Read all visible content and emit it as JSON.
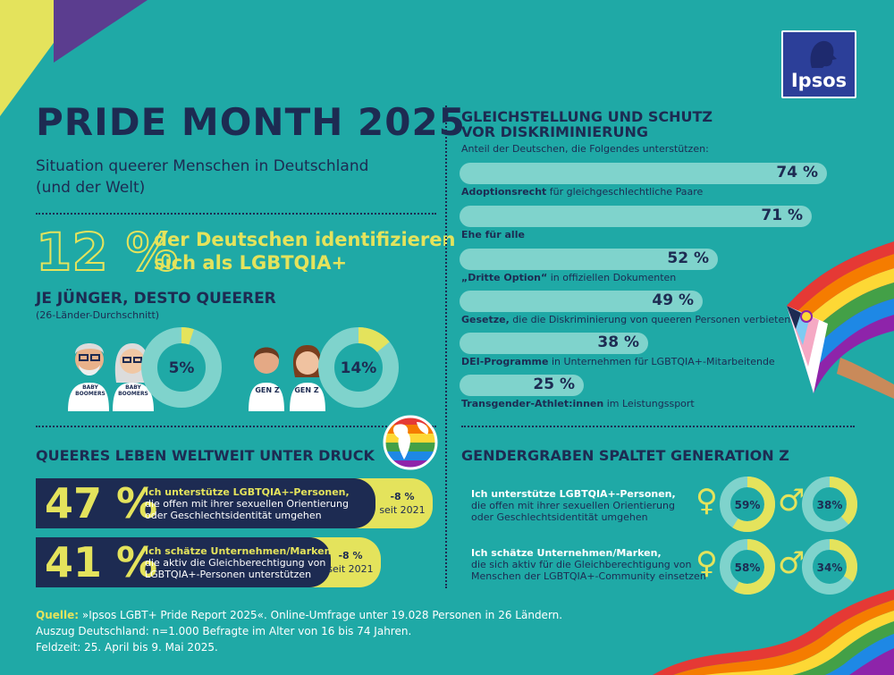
{
  "header": {
    "title": "PRIDE MONTH 2025",
    "subtitle_line1": "Situation queerer Menschen in Deutschland",
    "subtitle_line2": "(und der Welt)",
    "logo_text": "Ipsos"
  },
  "lgbt_share": {
    "value": "12 %",
    "text_line1": "der Deutschen identifizieren",
    "text_line2": "sich als LGBTQIA+"
  },
  "generations": {
    "title": "JE JÜNGER, DESTO QUEERER",
    "note": "(26-Länder-Durchschnitt)",
    "boomer_tag": "BABY BOOMERS",
    "genz_tag": "GEN Z"
  },
  "world": {
    "title": "QUEERES LEBEN WELTWEIT UNTER DRUCK",
    "stats": [
      {
        "value": "47 %",
        "bold": "Ich unterstütze LGBTQIA+-Personen,",
        "line2": "die offen mit ihrer sexuellen Orientierung",
        "line3": "oder Geschlechtsidentität umgehen",
        "change": "-8 %",
        "since": "seit 2021"
      },
      {
        "value": "41 %",
        "bold": "Ich schätze Unternehmen/Marken,",
        "line2": "die aktiv die Gleichberechtigung von",
        "line3": "LGBTQIA+-Personen unterstützen",
        "change": "-8 %",
        "since": "seit 2021"
      }
    ]
  },
  "equality": {
    "title_line1": "GLEICHSTELLUNG UND SCHUTZ",
    "title_line2": "VOR DISKRIMINIERUNG",
    "intro": "Anteil der Deutschen, die Folgendes unterstützen:",
    "items": [
      {
        "value_label": "74 %",
        "bold": "Adoptionsrecht",
        "rest": " für gleichgeschlechtliche Paare"
      },
      {
        "value_label": "71 %",
        "bold": "Ehe für alle",
        "rest": ""
      },
      {
        "value_label": "52 %",
        "bold": "„Dritte Option“",
        "rest": " in offiziellen Dokumenten"
      },
      {
        "value_label": "49 %",
        "bold": "Gesetze,",
        "rest": " die die Diskriminierung von queeren Personen verbieten"
      },
      {
        "value_label": "38 %",
        "bold": "DEI-Programme",
        "rest": " in Unternehmen für LGBTQIA+-Mitarbeitende"
      },
      {
        "value_label": "25 %",
        "bold": "Transgender-Athlet:innen",
        "rest": " im Leistungssport"
      }
    ]
  },
  "gender": {
    "title": "GENDERGRABEN SPALTET GENERATION Z",
    "female_symbol": "♀",
    "male_symbol": "♂",
    "rows": [
      {
        "bold": "Ich unterstütze LGBTQIA+-Personen,",
        "line2": "die offen mit ihrer sexuellen Orientierung",
        "line3": "oder Geschlechtsidentität umgehen"
      },
      {
        "bold": "Ich schätze Unternehmen/Marken,",
        "line2": "die sich aktiv für die Gleichberechtigung von",
        "line3": "Menschen der LGBTQIA+-Community einsetzen"
      }
    ]
  },
  "footer": {
    "source_label": "Quelle:",
    "line1": " »Ipsos LGBT+ Pride Report 2025«. Online-Umfrage unter 19.028 Personen in 26 Ländern.",
    "line2": "Auszug Deutschland: n=1.000 Befragte im Alter von 16 bis 74 Jahren.",
    "line3": "Feldzeit: 25. April bis 9. Mai 2025."
  },
  "colors": {
    "background": "#1fa9a6",
    "navy": "#1d2b52",
    "yellow": "#e4e35c",
    "light_teal": "#7fd3cc"
  },
  "chart_data": [
    {
      "type": "bar",
      "title": "GLEICHSTELLUNG UND SCHUTZ VOR DISKRIMINIERUNG",
      "categories": [
        "Adoptionsrecht für gleichgeschlechtliche Paare",
        "Ehe für alle",
        "„Dritte Option“ in offiziellen Dokumenten",
        "Gesetze, die die Diskriminierung von queeren Personen verbieten",
        "DEI-Programme in Unternehmen für LGBTQIA+-Mitarbeitende",
        "Transgender-Athlet:innen im Leistungssport"
      ],
      "values": [
        74,
        71,
        52,
        49,
        38,
        25
      ],
      "orientation": "horizontal"
    },
    {
      "type": "pie",
      "title": "JE JÜNGER, DESTO QUEERER",
      "slices": [
        {
          "label": "5%",
          "value": 5
        },
        {
          "label": "14%",
          "value": 14
        }
      ]
    },
    {
      "type": "pie",
      "title": "GENDERGRABEN SPALTET GENERATION Z",
      "slices": [
        {
          "label": "59%",
          "value": 59
        },
        {
          "label": "38%",
          "value": 38
        },
        {
          "label": "58%",
          "value": 58
        },
        {
          "label": "34%",
          "value": 34
        }
      ]
    }
  ]
}
